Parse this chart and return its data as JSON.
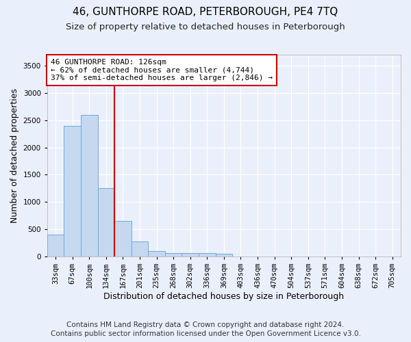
{
  "title": "46, GUNTHORPE ROAD, PETERBOROUGH, PE4 7TQ",
  "subtitle": "Size of property relative to detached houses in Peterborough",
  "xlabel": "Distribution of detached houses by size in Peterborough",
  "ylabel": "Number of detached properties",
  "footer_line1": "Contains HM Land Registry data © Crown copyright and database right 2024.",
  "footer_line2": "Contains public sector information licensed under the Open Government Licence v3.0.",
  "categories": [
    "33sqm",
    "67sqm",
    "100sqm",
    "134sqm",
    "167sqm",
    "201sqm",
    "235sqm",
    "268sqm",
    "302sqm",
    "336sqm",
    "369sqm",
    "403sqm",
    "436sqm",
    "470sqm",
    "504sqm",
    "537sqm",
    "571sqm",
    "604sqm",
    "638sqm",
    "672sqm",
    "705sqm"
  ],
  "values": [
    400,
    2400,
    2600,
    1250,
    650,
    270,
    100,
    65,
    65,
    60,
    50,
    0,
    0,
    0,
    0,
    0,
    0,
    0,
    0,
    0,
    0
  ],
  "bar_color": "#c5d8f0",
  "bar_edge_color": "#6daad4",
  "red_line_x": 3.5,
  "annotation_line1": "46 GUNTHORPE ROAD: 126sqm",
  "annotation_line2": "← 62% of detached houses are smaller (4,744)",
  "annotation_line3": "37% of semi-detached houses are larger (2,846) →",
  "annotation_box_color": "#ffffff",
  "annotation_box_edge": "#cc0000",
  "red_line_color": "#cc0000",
  "ylim": [
    0,
    3700
  ],
  "yticks": [
    0,
    500,
    1000,
    1500,
    2000,
    2500,
    3000,
    3500
  ],
  "background_color": "#eaf0fb",
  "plot_background": "#eaf0fb",
  "grid_color": "#ffffff",
  "title_fontsize": 11,
  "subtitle_fontsize": 9.5,
  "axis_label_fontsize": 9,
  "tick_fontsize": 7.5,
  "footer_fontsize": 7.5,
  "annotation_fontsize": 8
}
